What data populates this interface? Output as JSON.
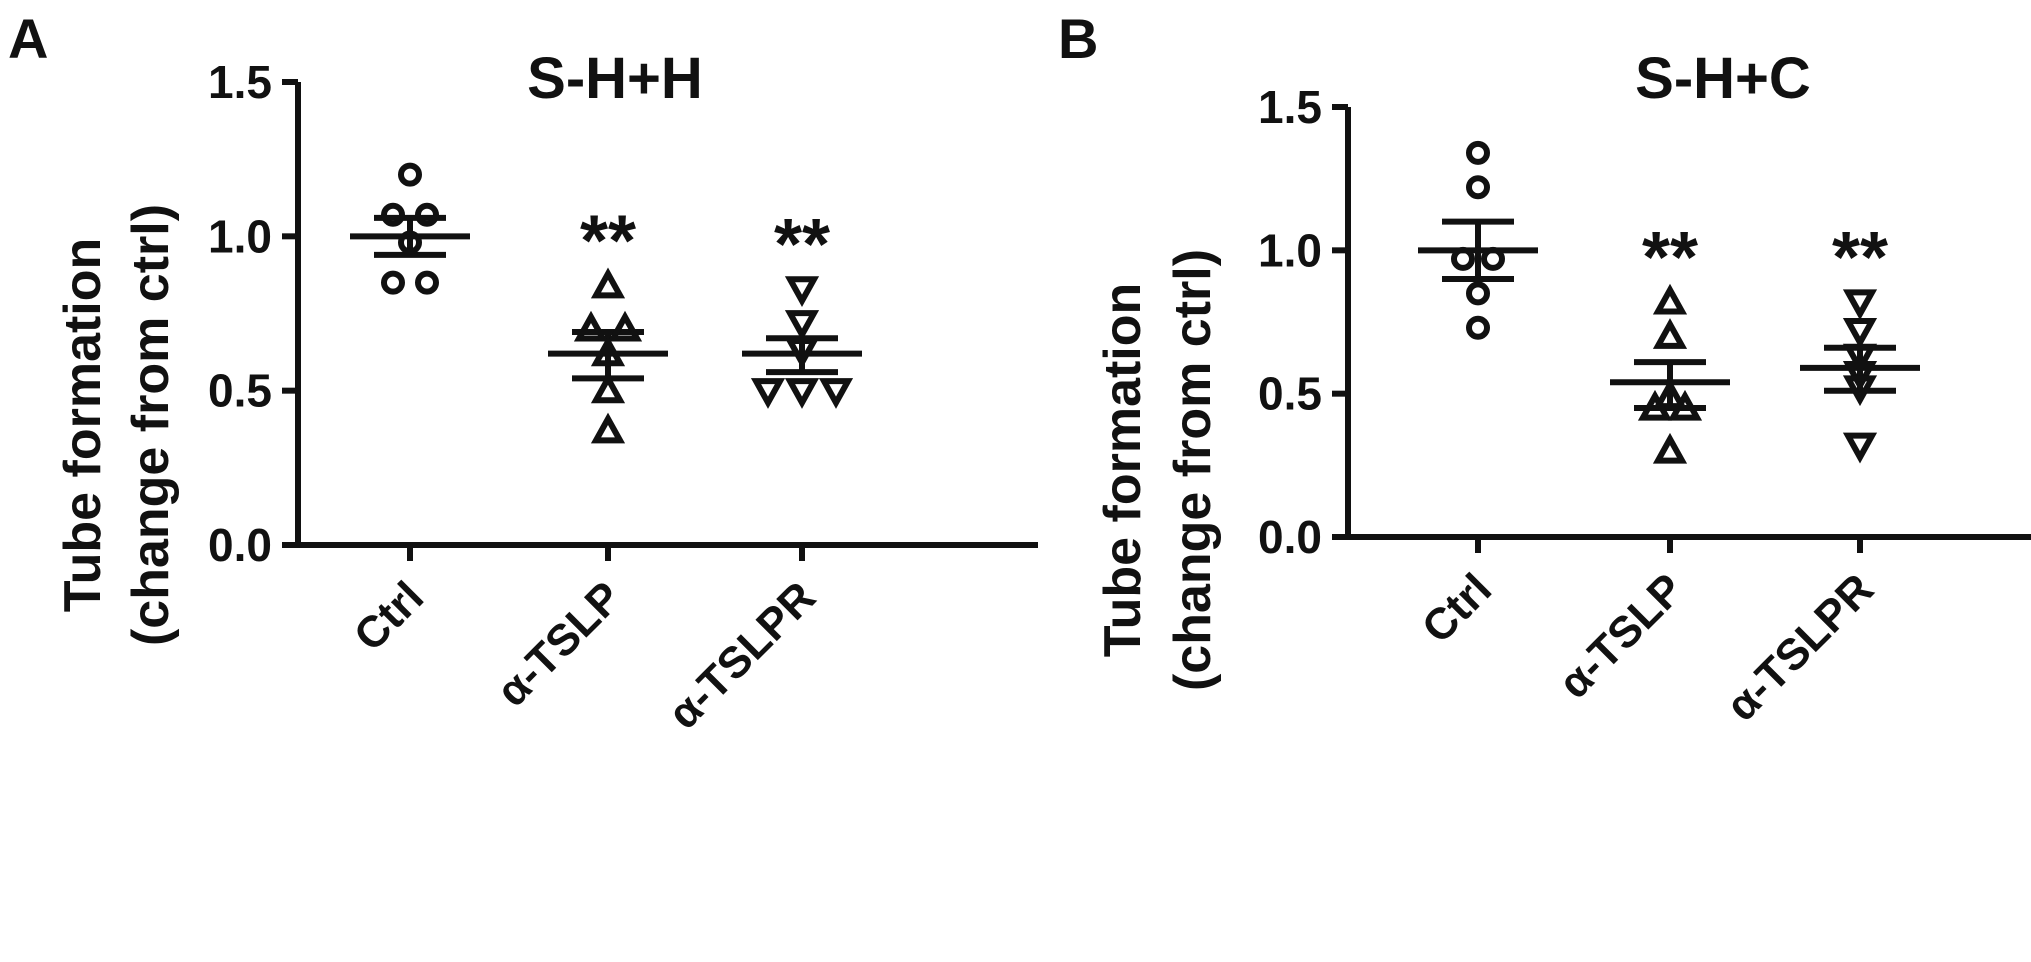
{
  "panels": [
    {
      "letter": "A",
      "title": "S-H+H",
      "ylabel_line1": "Tube formation",
      "ylabel_line2": "(change from ctrl)"
    },
    {
      "letter": "B",
      "title": "S-H+C",
      "ylabel_line1": "Tube formation",
      "ylabel_line2": "(change from ctrl)"
    }
  ],
  "chart_data": [
    {
      "type": "scatter",
      "title": "S-H+H",
      "ylabel": "Tube formation (change from ctrl)",
      "ylim": [
        0,
        1.5
      ],
      "yticks": [
        "0.0",
        "0.5",
        "1.0",
        "1.5"
      ],
      "categories": [
        "Ctrl",
        "α-TSLP",
        "α-TSLPR"
      ],
      "series": [
        {
          "category": "Ctrl",
          "marker": "circle",
          "mean": 1.0,
          "sem_low": 0.94,
          "sem_high": 1.06,
          "significance": "",
          "points": [
            1.2,
            1.07,
            1.07,
            0.98,
            0.85,
            0.85
          ]
        },
        {
          "category": "α-TSLP",
          "marker": "triangle-up",
          "mean": 0.62,
          "sem_low": 0.54,
          "sem_high": 0.69,
          "significance": "**",
          "points": [
            0.84,
            0.7,
            0.7,
            0.62,
            0.5,
            0.37
          ]
        },
        {
          "category": "α-TSLPR",
          "marker": "triangle-down",
          "mean": 0.62,
          "sem_low": 0.56,
          "sem_high": 0.67,
          "significance": "**",
          "points": [
            0.83,
            0.72,
            0.63,
            0.5,
            0.5,
            0.5
          ]
        }
      ]
    },
    {
      "type": "scatter",
      "title": "S-H+C",
      "ylabel": "Tube formation (change from ctrl)",
      "ylim": [
        0,
        1.5
      ],
      "yticks": [
        "0.0",
        "0.5",
        "1.0",
        "1.5"
      ],
      "categories": [
        "Ctrl",
        "α-TSLP",
        "α-TSLPR"
      ],
      "series": [
        {
          "category": "Ctrl",
          "marker": "circle",
          "mean": 1.0,
          "sem_low": 0.9,
          "sem_high": 1.1,
          "significance": "",
          "points": [
            1.34,
            1.22,
            0.97,
            0.97,
            0.85,
            0.73
          ]
        },
        {
          "category": "α-TSLP",
          "marker": "triangle-up",
          "mean": 0.54,
          "sem_low": 0.45,
          "sem_high": 0.61,
          "significance": "**",
          "points": [
            0.82,
            0.7,
            0.49,
            0.45,
            0.45,
            0.3
          ]
        },
        {
          "category": "α-TSLPR",
          "marker": "triangle-down",
          "mean": 0.59,
          "sem_low": 0.51,
          "sem_high": 0.66,
          "significance": "**",
          "points": [
            0.82,
            0.72,
            0.63,
            0.57,
            0.52,
            0.32
          ]
        }
      ]
    }
  ]
}
